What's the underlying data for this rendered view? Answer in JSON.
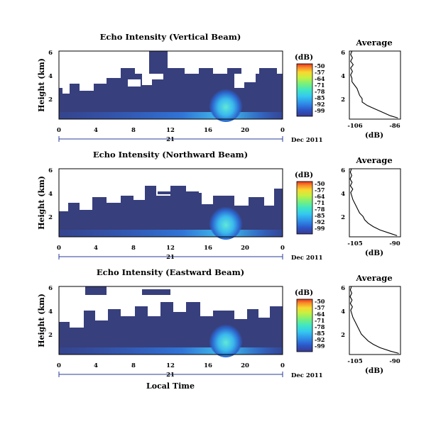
{
  "chart_data": [
    {
      "type": "heatmap",
      "title": "Echo Intensity (Vertical Beam)",
      "ylabel": "Height (km)",
      "xticks": [
        "0",
        "4",
        "8",
        "12",
        "16",
        "20",
        "0"
      ],
      "xlim": [
        0,
        24
      ],
      "yticks": [
        "2",
        "4",
        "6"
      ],
      "ylim": [
        0,
        6
      ],
      "date_day": "21",
      "date_label": "Dec 2011",
      "colorbar": {
        "unit": "(dB)",
        "ticks": [
          "-50",
          "-57",
          "-64",
          "-71",
          "-78",
          "-85",
          "-92",
          "-99"
        ]
      },
      "profile": {
        "title": "Average",
        "xlabel": "(dB)",
        "xticks": [
          "-106",
          "-86"
        ],
        "xlim": [
          -106,
          -86
        ],
        "yticks": [
          "2",
          "4",
          "6"
        ],
        "ylim": [
          0,
          6
        ],
        "heights": [
          0.1,
          0.3,
          0.6,
          0.9,
          1.2,
          1.5,
          1.8,
          2.1,
          2.4,
          2.7,
          3.0,
          3.3,
          3.6,
          3.9,
          4.2,
          4.5,
          4.8,
          5.1,
          5.4,
          5.7,
          6.0
        ],
        "values": [
          -87,
          -90,
          -93,
          -96,
          -99,
          -101,
          -101,
          -102,
          -102.5,
          -103,
          -104,
          -105,
          -105,
          -105.5,
          -104.8,
          -105.5,
          -104.5,
          -105.5,
          -104.8,
          -105.5,
          -105
        ]
      }
    },
    {
      "type": "heatmap",
      "title": "Echo Intensity (Northward Beam)",
      "ylabel": "Height (km)",
      "xticks": [
        "0",
        "4",
        "8",
        "12",
        "16",
        "20",
        "0"
      ],
      "xlim": [
        0,
        24
      ],
      "yticks": [
        "2",
        "4",
        "6"
      ],
      "ylim": [
        0,
        6
      ],
      "date_day": "21",
      "date_label": "Dec 2011",
      "colorbar": {
        "unit": "(dB)",
        "ticks": [
          "-50",
          "-57",
          "-64",
          "-71",
          "-78",
          "-85",
          "-92",
          "-99"
        ]
      },
      "profile": {
        "title": "Average",
        "xlabel": "(dB)",
        "xticks": [
          "-105",
          "-90"
        ],
        "xlim": [
          -105,
          -90
        ],
        "yticks": [
          "2",
          "4",
          "6"
        ],
        "ylim": [
          0,
          6
        ],
        "heights": [
          0.1,
          0.3,
          0.6,
          0.9,
          1.2,
          1.5,
          1.8,
          2.1,
          2.4,
          2.7,
          3.0,
          3.3,
          3.6,
          3.9,
          4.2,
          4.5,
          4.8,
          5.1,
          5.4,
          5.7,
          6.0
        ],
        "values": [
          -91,
          -93,
          -96,
          -98,
          -99.5,
          -100.5,
          -101,
          -102,
          -102.5,
          -103,
          -103.5,
          -104,
          -104.3,
          -104.6,
          -104,
          -104.7,
          -104.2,
          -104.8,
          -104.3,
          -104.7,
          -104.4
        ]
      }
    },
    {
      "type": "heatmap",
      "title": "Echo Intensity (Eastward Beam)",
      "ylabel": "Height (km)",
      "xticks": [
        "0",
        "4",
        "8",
        "12",
        "16",
        "20",
        "0"
      ],
      "xlim": [
        0,
        24
      ],
      "yticks": [
        "2",
        "4",
        "6"
      ],
      "ylim": [
        0,
        6
      ],
      "date_day": "21",
      "date_label": "Dec 2011",
      "xlabel": "Local Time",
      "colorbar": {
        "unit": "(dB)",
        "ticks": [
          "-50",
          "-57",
          "-64",
          "-71",
          "-78",
          "-85",
          "-92",
          "-99"
        ]
      },
      "profile": {
        "title": "Average",
        "xlabel": "(dB)",
        "xticks": [
          "-105",
          "-90"
        ],
        "xlim": [
          -105,
          -90
        ],
        "yticks": [
          "2",
          "4",
          "6"
        ],
        "ylim": [
          0,
          6
        ],
        "heights": [
          0.1,
          0.3,
          0.6,
          0.9,
          1.2,
          1.5,
          1.8,
          2.1,
          2.4,
          2.7,
          3.0,
          3.3,
          3.6,
          3.9,
          4.2,
          4.5,
          4.8,
          5.1,
          5.4,
          5.7,
          6.0
        ],
        "values": [
          -90.5,
          -93,
          -96,
          -98,
          -99.5,
          -100.5,
          -101.5,
          -102,
          -102.5,
          -103,
          -103.5,
          -104,
          -104.3,
          -104.6,
          -104.1,
          -104.7,
          -104.2,
          -104.8,
          -104.3,
          -104.7,
          -104.4
        ]
      }
    }
  ],
  "colors": {
    "background_echo": "#373f7c",
    "colormap": [
      "#3a3a8f",
      "#2c56c8",
      "#2f8fe8",
      "#35c8f0",
      "#3fe6c4",
      "#7af07a",
      "#c8f040",
      "#f8d830",
      "#f88a28",
      "#e83020"
    ],
    "axis": "#000000",
    "date_rule": "#2a3c9a"
  }
}
